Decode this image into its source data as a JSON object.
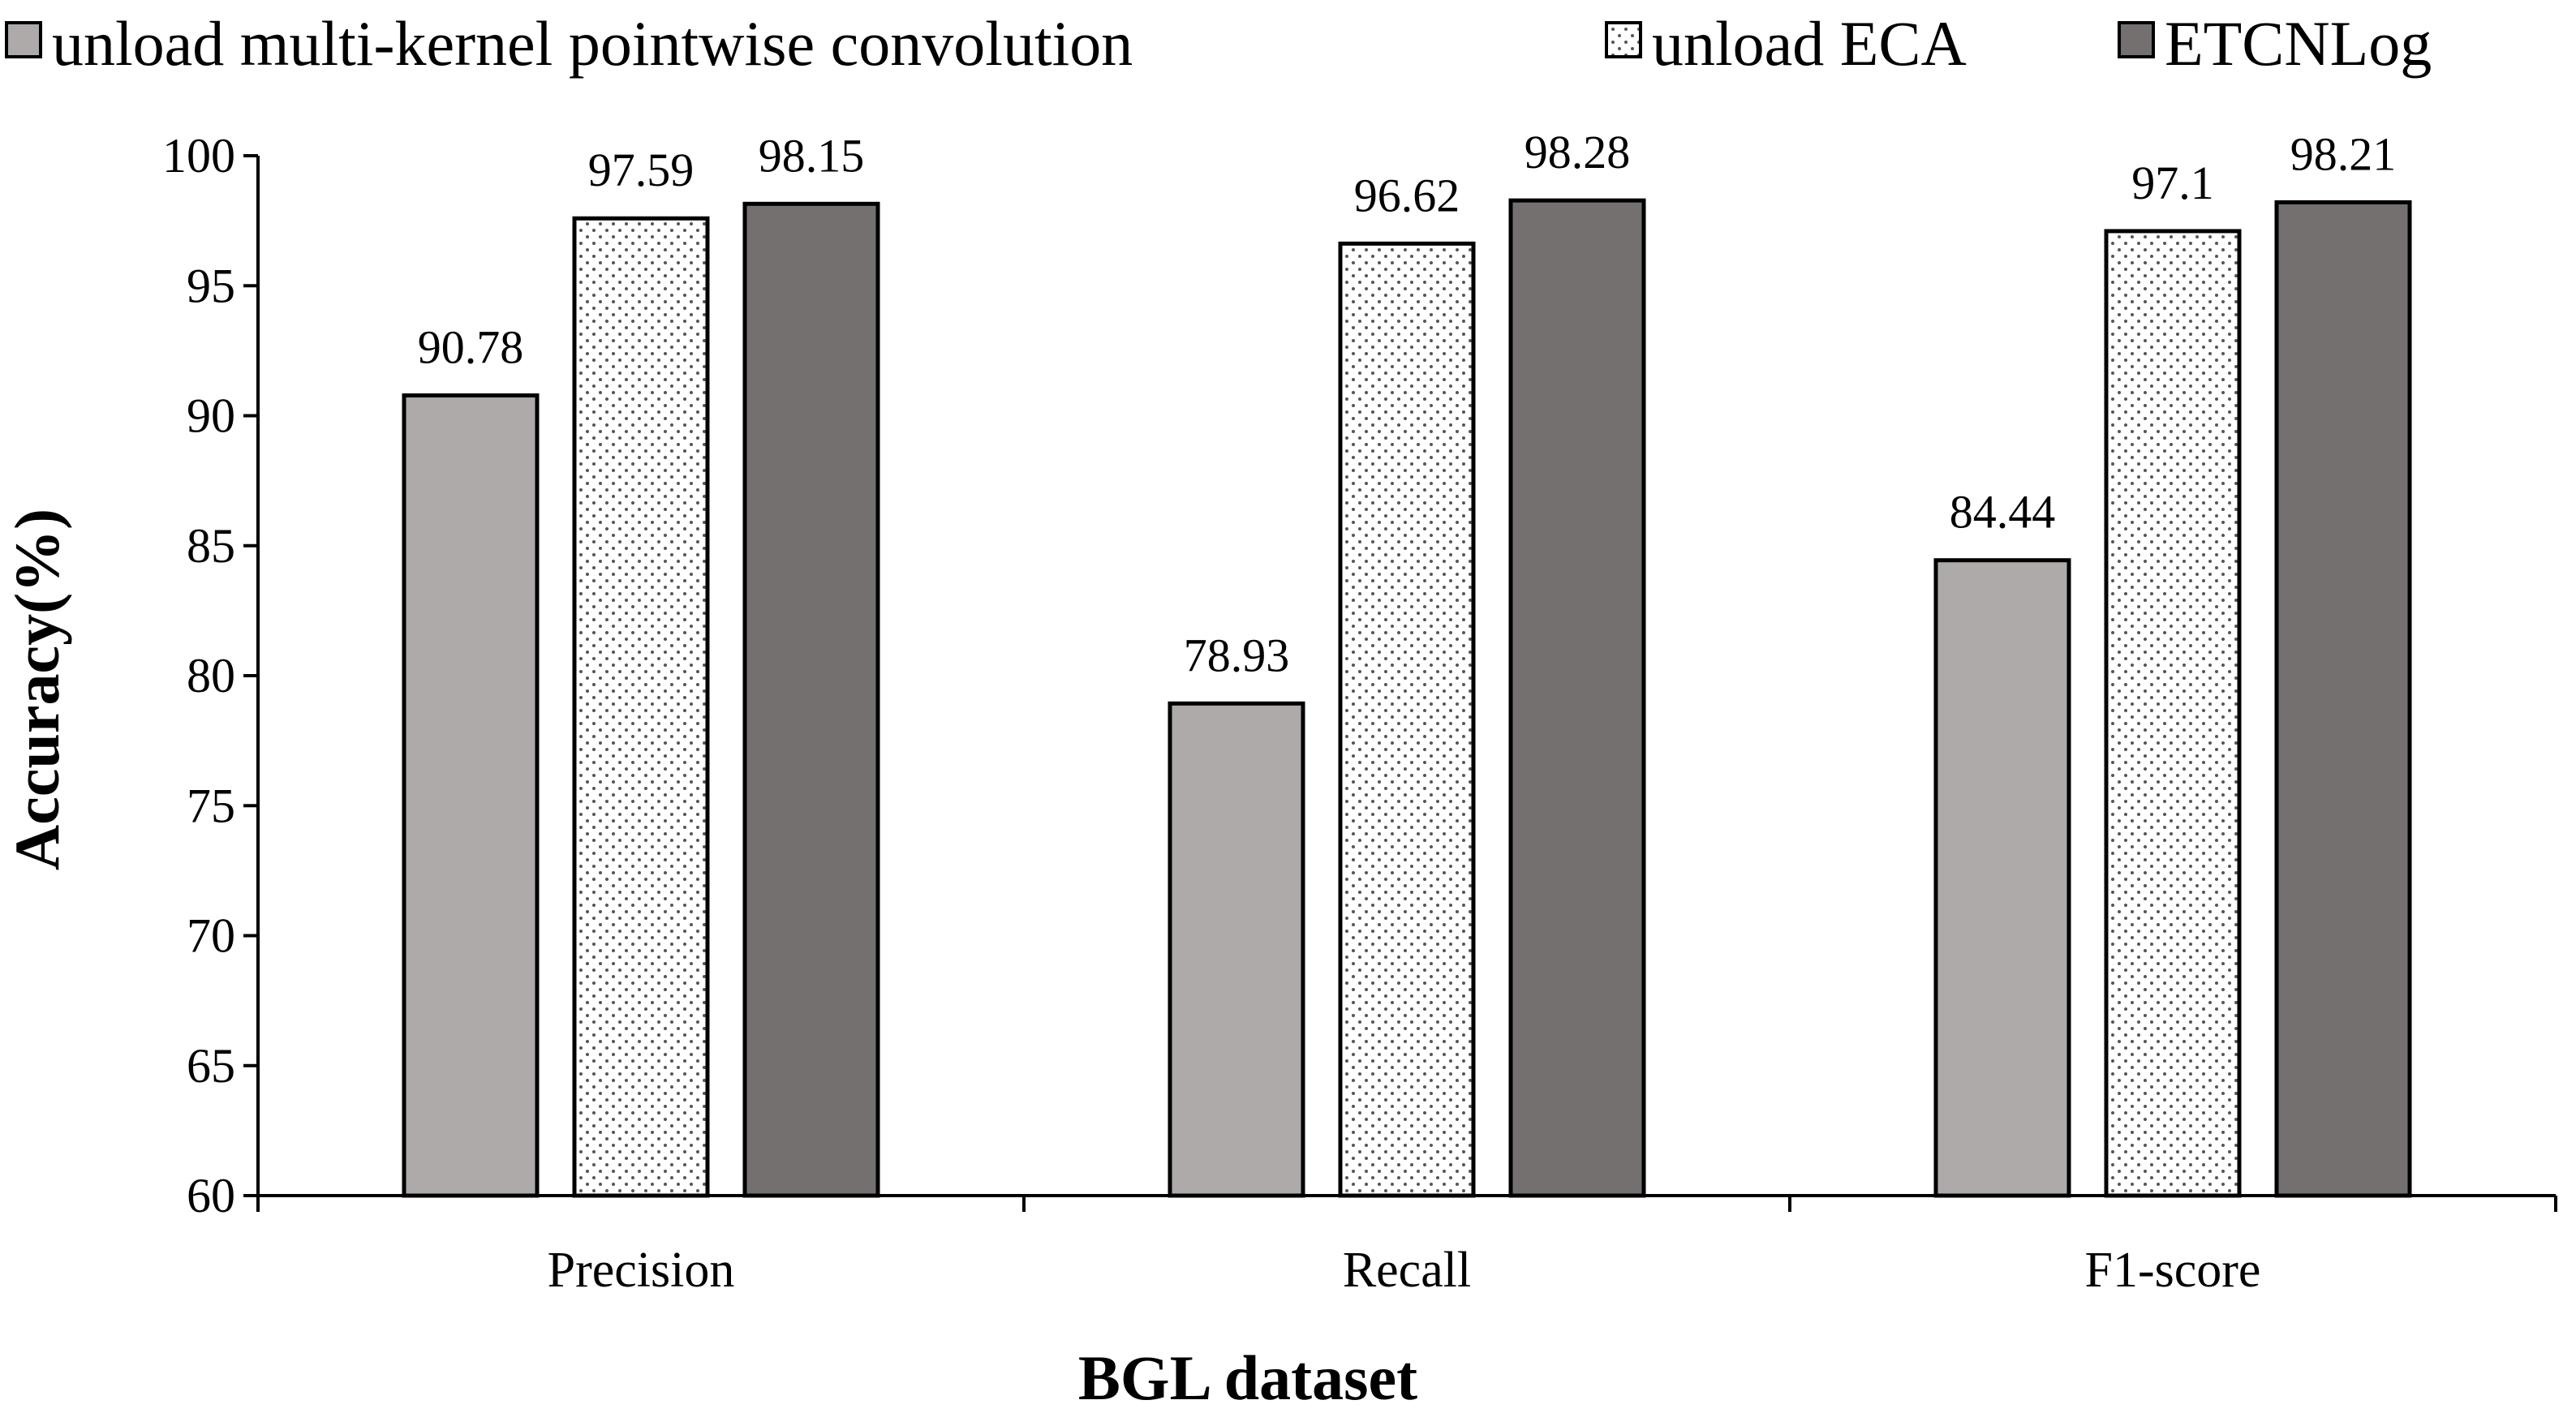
{
  "chart_data": {
    "type": "bar",
    "title": "",
    "xlabel": "BGL dataset",
    "ylabel": "Accuracy(%)",
    "ylim": [
      60,
      100
    ],
    "yticks": [
      "60",
      "65",
      "70",
      "75",
      "80",
      "85",
      "90",
      "95",
      "100"
    ],
    "categories": [
      "Precision",
      "Recall",
      "F1-score"
    ],
    "legend_position": "top",
    "series": [
      {
        "name": "unload  multi-kernel pointwise convolution",
        "values": [
          90.78,
          78.93,
          84.44
        ],
        "labels": [
          "90.78",
          "78.93",
          "84.44"
        ],
        "fill": "#aeaaaa",
        "pattern": "solid"
      },
      {
        "name": "unload ECA",
        "values": [
          97.59,
          96.62,
          97.1
        ],
        "labels": [
          "97.59",
          "96.62",
          "97.1"
        ],
        "fill": "#ffffff",
        "pattern": "dots"
      },
      {
        "name": "ETCNLog",
        "values": [
          98.15,
          98.28,
          98.21
        ],
        "labels": [
          "98.15",
          "98.28",
          "98.21"
        ],
        "fill": "#747070",
        "pattern": "solid"
      }
    ]
  }
}
